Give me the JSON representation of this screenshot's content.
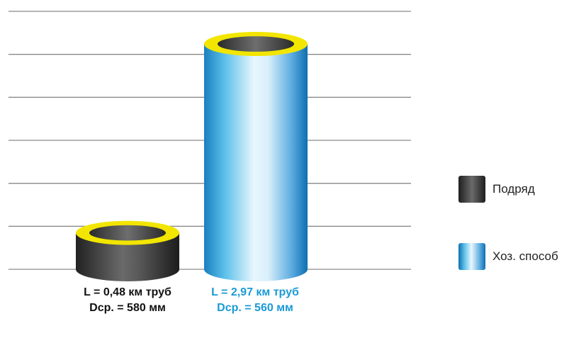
{
  "chart_data": {
    "type": "bar",
    "categories": [
      "Подряд",
      "Хоз. способ"
    ],
    "values": [
      0.48,
      2.97
    ],
    "ylim": [
      0,
      3.4
    ],
    "grid": true,
    "legend_position": "right",
    "series": [
      {
        "name": "Подряд",
        "color": "#3a3a3a",
        "values": [
          0.48,
          null
        ]
      },
      {
        "name": "Хоз. способ",
        "color": "#1e8bc3",
        "values": [
          null,
          2.97
        ]
      }
    ],
    "bar_labels": [
      {
        "line1": "L = 0,48 км труб",
        "line2": "Dср. = 580 мм",
        "color": "#111111"
      },
      {
        "line1": "L = 2,97 км труб",
        "line2": "Dср. = 560 мм",
        "color": "#1a9ad6"
      }
    ],
    "rim_color": "#f2e600"
  },
  "legend": {
    "items": [
      {
        "label": "Подряд",
        "style": "dark-gradient"
      },
      {
        "label": "Хоз. способ",
        "style": "blue-gradient"
      }
    ]
  }
}
